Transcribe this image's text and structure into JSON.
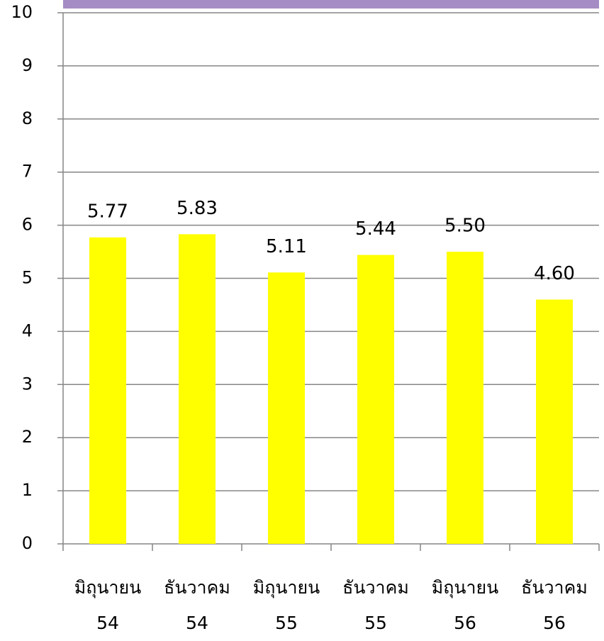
{
  "chart_data": {
    "type": "bar",
    "categories": [
      "มิถุนายน 54",
      "ธันวาคม 54",
      "มิถุนายน 55",
      "ธันวาคม 55",
      "มิถุนายน 56",
      "ธันวาคม 56"
    ],
    "values": [
      5.77,
      5.83,
      5.11,
      5.44,
      5.5,
      4.6
    ],
    "value_labels": [
      "5.77",
      "5.83",
      "5.11",
      "5.44",
      "5.50",
      "4.60"
    ],
    "color": "#ffff00",
    "ylim": [
      0,
      10
    ],
    "yticks": [
      0,
      1,
      2,
      3,
      4,
      5,
      6,
      7,
      8,
      9,
      10
    ],
    "grid": true
  }
}
